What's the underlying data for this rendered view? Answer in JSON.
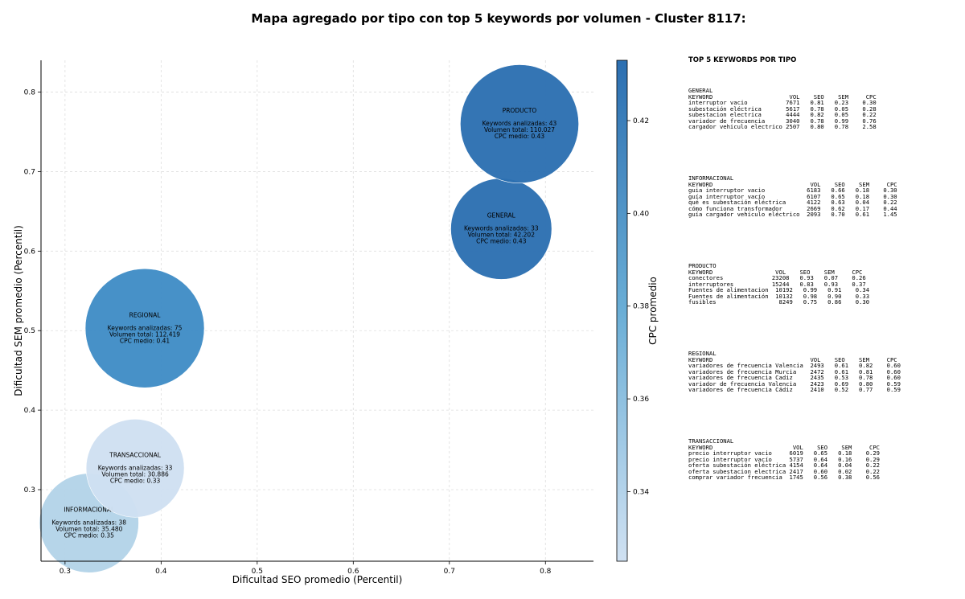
{
  "title": "Mapa agregado por tipo con top 5 keywords por volumen - Cluster 8117:",
  "chart_data": {
    "type": "scatter",
    "xlabel": "Dificultad SEO promedio (Percentil)",
    "ylabel": "Dificultad SEM promedio (Percentil)",
    "xlim": [
      0.275,
      0.85
    ],
    "ylim": [
      0.21,
      0.84
    ],
    "xticks": [
      "0.3",
      "0.4",
      "0.5",
      "0.6",
      "0.7",
      "0.8"
    ],
    "yticks": [
      "0.3",
      "0.4",
      "0.5",
      "0.6",
      "0.7",
      "0.8"
    ],
    "grid": true,
    "colorbar": {
      "label": "CPC promedio",
      "range": [
        0.325,
        0.433
      ],
      "ticks": [
        "0.34",
        "0.36",
        "0.38",
        "0.40",
        "0.42"
      ],
      "color_low": "#d0e1f2",
      "color_high": "#2c6fb1"
    },
    "points": [
      {
        "tipo": "INFORMACIONAL",
        "x": 0.325,
        "y": 0.258,
        "keywords_line": "Keywords analizadas: 38",
        "volume_line": "Volumen total: 35.480",
        "cpc_line": "CPC medio: 0.35",
        "cpc": 0.35,
        "volume": 35480,
        "color": "#b3d3e8"
      },
      {
        "tipo": "TRANSACCIONAL",
        "x": 0.373,
        "y": 0.327,
        "keywords_line": "Keywords analizadas: 33",
        "volume_line": "Volumen total: 30.886",
        "cpc_line": "CPC medio: 0.33",
        "cpc": 0.33,
        "volume": 30886,
        "color": "#cfe0f1"
      },
      {
        "tipo": "REGIONAL",
        "x": 0.383,
        "y": 0.503,
        "keywords_line": "Keywords analizadas: 75",
        "volume_line": "Volumen total: 112.419",
        "cpc_line": "CPC medio: 0.41",
        "cpc": 0.41,
        "volume": 112419,
        "color": "#3f8cc6"
      },
      {
        "tipo": "GENERAL",
        "x": 0.754,
        "y": 0.628,
        "keywords_line": "Keywords analizadas: 33",
        "volume_line": "Volumen total: 42.202",
        "cpc_line": "CPC medio: 0.43",
        "cpc": 0.43,
        "volume": 42202,
        "color": "#2c6fb1"
      },
      {
        "tipo": "PRODUCTO",
        "x": 0.773,
        "y": 0.76,
        "keywords_line": "Keywords analizadas: 43",
        "volume_line": "Volumen total: 110.027",
        "cpc_line": "CPC medio: 0.43",
        "cpc": 0.43,
        "volume": 110027,
        "color": "#2c6fb1"
      }
    ]
  },
  "top_keywords": {
    "title": "TOP 5 KEYWORDS POR TIPO",
    "blocks": [
      {
        "name": "GENERAL",
        "lines": [
          "GENERAL",
          "KEYWORD                      VOL    SEO    SEM     CPC",
          "interruptor vacio           7671   0.81   0.23    0.30",
          "subestación eléctrica       5617   0.78   0.05    0.28",
          "subestacion electrica       4444   0.82   0.05    0.22",
          "variador de frecuencia      3040   0.78   0.99    0.76",
          "cargador vehiculo electrico 2507   0.80   0.78    2.58"
        ]
      },
      {
        "name": "INFORMACIONAL",
        "lines": [
          "INFORMACIONAL",
          "KEYWORD                            VOL    SEO    SEM     CPC",
          "guia interruptor vacio            6183   0.66   0.18    0.30",
          "guía interruptor vacío            6107   0.65   0.18    0.30",
          "qué es subestación eléctrica      4122   0.63   0.04    0.22",
          "cómo funciona transformador       2669   0.62   0.17    0.44",
          "guía cargador vehículo eléctrico  2093   0.70   0.61    1.45"
        ]
      },
      {
        "name": "PRODUCTO",
        "lines": [
          "PRODUCTO",
          "KEYWORD                  VOL    SEO    SEM     CPC",
          "conectores              23208   0.93   0.07    0.26",
          "interruptores           15244   0.83   0.93    0.37",
          "Fuentes de alimentacion  10192   0.99   0.91    0.34",
          "Fuentes de alimentación  10132   0.98   0.90    0.33",
          "fusibles                  8249   0.75   0.86    0.30"
        ]
      },
      {
        "name": "REGIONAL",
        "lines": [
          "REGIONAL",
          "KEYWORD                            VOL    SEO    SEM     CPC",
          "variadores de frecuencia Valencia  2493   0.61   0.82    0.60",
          "variadores de frecuencia Murcia    2472   0.61   0.81    0.60",
          "variadores de frecuencia Cadiz     2435   0.53   0.78    0.60",
          "variador de frecuencia Valencia    2423   0.69   0.80    0.59",
          "variadores de frecuencia Cádiz     2410   0.52   0.77    0.59"
        ]
      },
      {
        "name": "TRANSACCIONAL",
        "lines": [
          "TRANSACCIONAL",
          "KEYWORD                       VOL    SEO    SEM     CPC",
          "precio interruptor vacio     6019   0.65   0.18    0.29",
          "precio interruptor vacío     5737   0.64   0.16    0.29",
          "oferta subestación eléctrica 4154   0.64   0.04    0.22",
          "oferta subestacion electrica 2417   0.60   0.02    0.22",
          "comprar variador frecuencia  1745   0.56   0.38    0.56"
        ]
      }
    ]
  }
}
